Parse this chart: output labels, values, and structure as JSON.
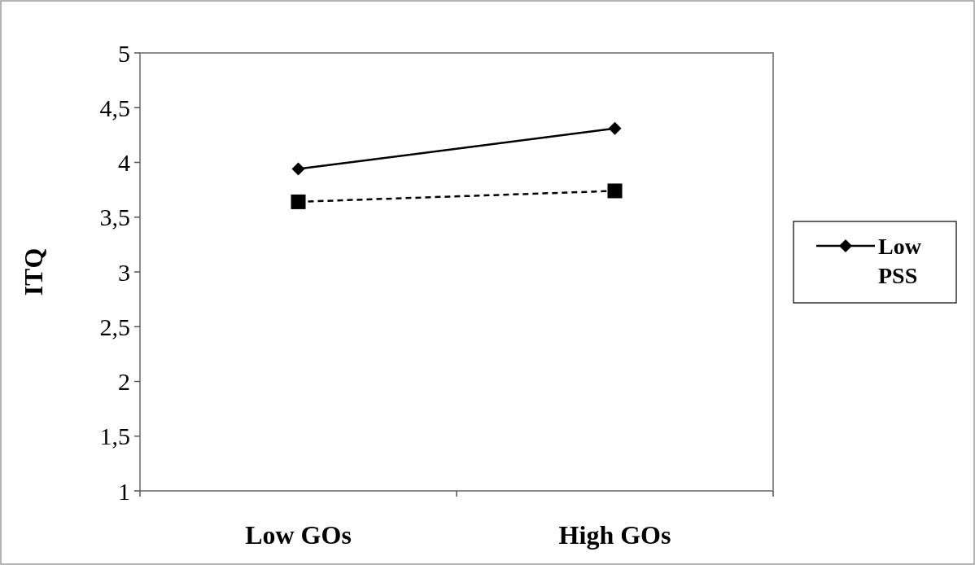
{
  "chart_data": {
    "type": "line",
    "ylabel": "ITQ",
    "categories": [
      "Low GOs",
      "High GOs"
    ],
    "series": [
      {
        "name": "Low PSS",
        "color": "#000000",
        "values": [
          3.94,
          4.31
        ],
        "marker": "diamond",
        "line_style": "solid"
      },
      {
        "color": "#000000",
        "values": [
          3.64,
          3.74
        ],
        "marker": "square",
        "line_style": "dashed"
      }
    ],
    "ylim": [
      1,
      5
    ],
    "yticks": [
      1,
      {
        "value": 1.5,
        "label": "1,5"
      },
      2,
      {
        "value": 2.5,
        "label": "2,5"
      },
      3,
      {
        "value": 3.5,
        "label": "3,5"
      },
      4,
      {
        "value": 4.5,
        "label": "4,5"
      },
      5
    ],
    "grid": false,
    "legend": "right"
  }
}
